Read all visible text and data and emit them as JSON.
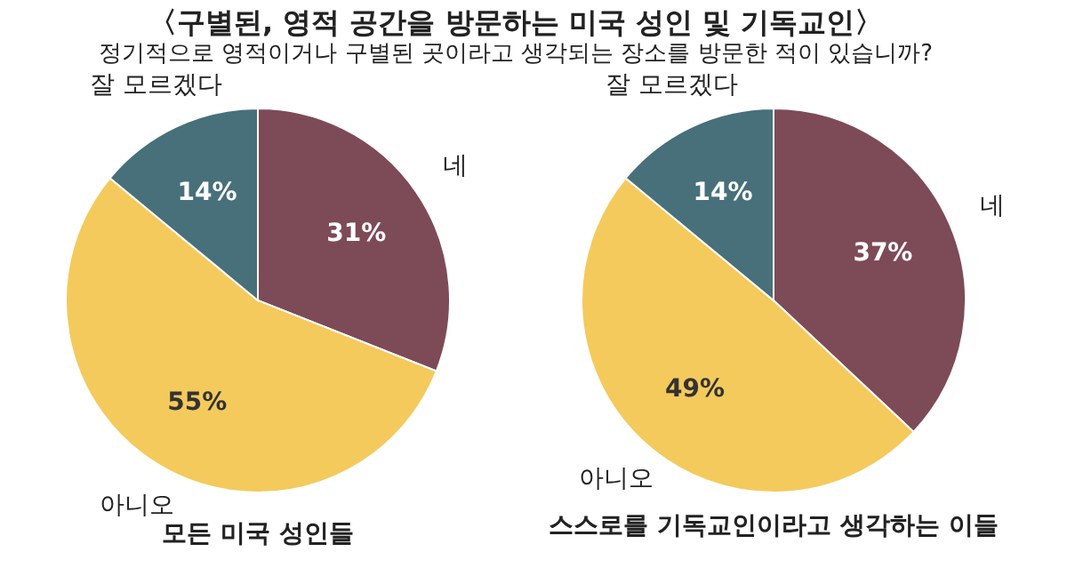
{
  "chart_data": [
    {
      "type": "pie",
      "title": "〈구별된, 영적 공간을 방문하는 미국 성인 및 기독교인〉",
      "subtitle": "정기적으로 영적이거나 구별된 곳이라고 생각되는 장소를 방문한 적이 있습니까?",
      "xlabel": "모든 미국 성인들",
      "categories": [
        "네",
        "아니오",
        "잘 모르겠다"
      ],
      "values": [
        31,
        55,
        14
      ],
      "value_labels": [
        "31%",
        "55%",
        "14%"
      ],
      "colors": [
        "#7d4b57",
        "#f4ca5c",
        "#47707a"
      ]
    },
    {
      "type": "pie",
      "xlabel": "스스로를 기독교인이라고 생각하는 이들",
      "categories": [
        "네",
        "아니오",
        "잘 모르겠다"
      ],
      "values": [
        37,
        49,
        14
      ],
      "value_labels": [
        "37%",
        "49%",
        "14%"
      ],
      "colors": [
        "#7d4b57",
        "#f4ca5c",
        "#47707a"
      ]
    }
  ]
}
